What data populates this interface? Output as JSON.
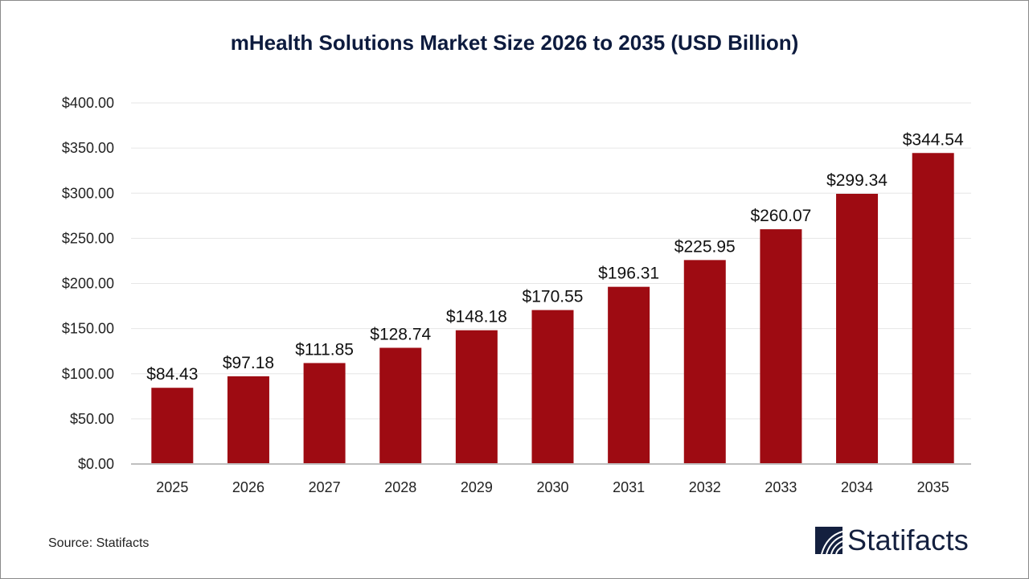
{
  "chart_data": {
    "type": "bar",
    "title": "mHealth Solutions Market Size 2026 to 2035 (USD Billion)",
    "categories": [
      "2025",
      "2026",
      "2027",
      "2028",
      "2029",
      "2030",
      "2031",
      "2032",
      "2033",
      "2034",
      "2035"
    ],
    "values": [
      84.43,
      97.18,
      111.85,
      128.74,
      148.18,
      170.55,
      196.31,
      225.95,
      260.07,
      299.34,
      344.54
    ],
    "data_labels": [
      "$84.43",
      "$97.18",
      "$111.85",
      "$128.74",
      "$148.18",
      "$170.55",
      "$196.31",
      "$225.95",
      "$260.07",
      "$299.34",
      "$344.54"
    ],
    "yticks": [
      "$0.00",
      "$50.00",
      "$100.00",
      "$150.00",
      "$200.00",
      "$250.00",
      "$300.00",
      "$350.00",
      "$400.00"
    ],
    "ylim": [
      0,
      400
    ],
    "xlabel": "",
    "ylabel": "",
    "grid": true,
    "bar_color": "#9e0b12"
  },
  "source": "Source: Statifacts",
  "logo": {
    "text": "Statifacts",
    "color": "#14203f"
  }
}
